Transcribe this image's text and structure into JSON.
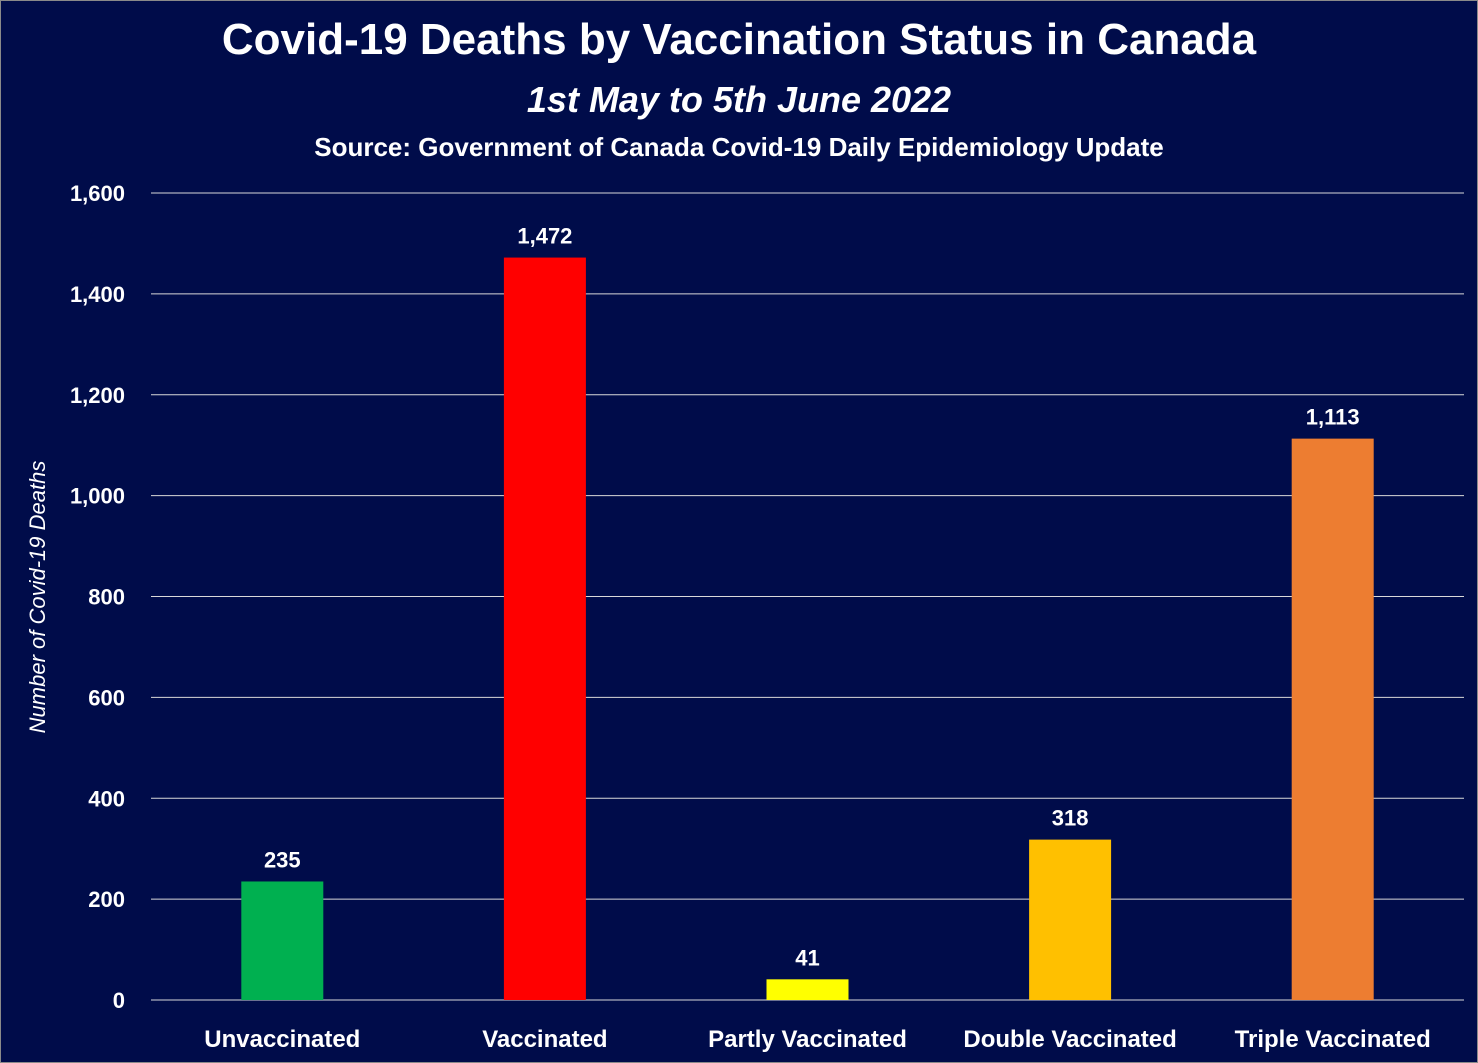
{
  "chart_data": {
    "type": "bar",
    "title": "Covid-19 Deaths by Vaccination Status in Canada",
    "subtitle": "1st May to 5th June 2022",
    "source": "Source: Government of Canada Covid-19 Daily Epidemiology Update",
    "xlabel": "",
    "ylabel": "Number of Covid-19 Deaths",
    "ylim": [
      0,
      1600
    ],
    "yticks": [
      0,
      200,
      400,
      600,
      800,
      1000,
      1200,
      1400,
      1600
    ],
    "ytick_labels": [
      "0",
      "200",
      "400",
      "600",
      "800",
      "1,000",
      "1,200",
      "1,400",
      "1,600"
    ],
    "grid": true,
    "legend": "none",
    "categories": [
      "Unvaccinated",
      "Vaccinated",
      "Partly Vaccinated",
      "Double Vaccinated",
      "Triple Vaccinated"
    ],
    "values": [
      235,
      1472,
      41,
      318,
      1113
    ],
    "value_labels": [
      "235",
      "1,472",
      "41",
      "318",
      "1,113"
    ],
    "colors": [
      "#00b050",
      "#ff0000",
      "#ffff00",
      "#ffc000",
      "#ed7d31"
    ]
  },
  "style": {
    "background": "#000c4a",
    "text_color": "#ffffff",
    "gridline_color": "#d9d9d9"
  }
}
